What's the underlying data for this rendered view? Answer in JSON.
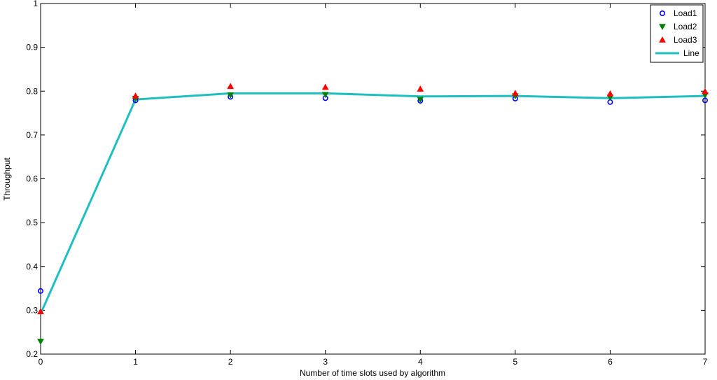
{
  "chart_data": {
    "type": "line",
    "title": "",
    "xlabel": "Number of time slots used by algorithm",
    "ylabel": "Throughput",
    "xlim": [
      0,
      7
    ],
    "ylim": [
      0.2,
      1
    ],
    "x_ticks": [
      0,
      1,
      2,
      3,
      4,
      5,
      6,
      7
    ],
    "y_ticks": [
      0.2,
      0.3,
      0.4,
      0.5,
      0.6,
      0.7,
      0.8,
      0.9,
      1
    ],
    "x_tick_labels": [
      "0",
      "1",
      "2",
      "3",
      "4",
      "5",
      "6",
      "7"
    ],
    "y_tick_labels": [
      "0.2",
      "0.3",
      "0.4",
      "0.5",
      "0.6",
      "0.7",
      "0.8",
      "0.9",
      "1"
    ],
    "grid": false,
    "legend_position": "top-right",
    "x": [
      0,
      1,
      2,
      3,
      4,
      5,
      6,
      7
    ],
    "series": [
      {
        "name": "Load1",
        "kind": "scatter",
        "marker": "circle",
        "color": "#0000ff",
        "values": [
          0.344,
          0.779,
          0.787,
          0.784,
          0.778,
          0.783,
          0.775,
          0.779
        ]
      },
      {
        "name": "Load2",
        "kind": "scatter",
        "marker": "triangle-down",
        "color": "#008000",
        "values": [
          0.229,
          0.783,
          0.791,
          0.792,
          0.781,
          0.789,
          0.786,
          0.791
        ]
      },
      {
        "name": "Load3",
        "kind": "scatter",
        "marker": "triangle-up",
        "color": "#ff0000",
        "values": [
          0.297,
          0.789,
          0.811,
          0.809,
          0.805,
          0.795,
          0.794,
          0.799
        ]
      },
      {
        "name": "Line",
        "kind": "line",
        "color": "#1fbfbf",
        "values": [
          0.292,
          0.781,
          0.795,
          0.795,
          0.788,
          0.789,
          0.784,
          0.789
        ]
      }
    ]
  }
}
